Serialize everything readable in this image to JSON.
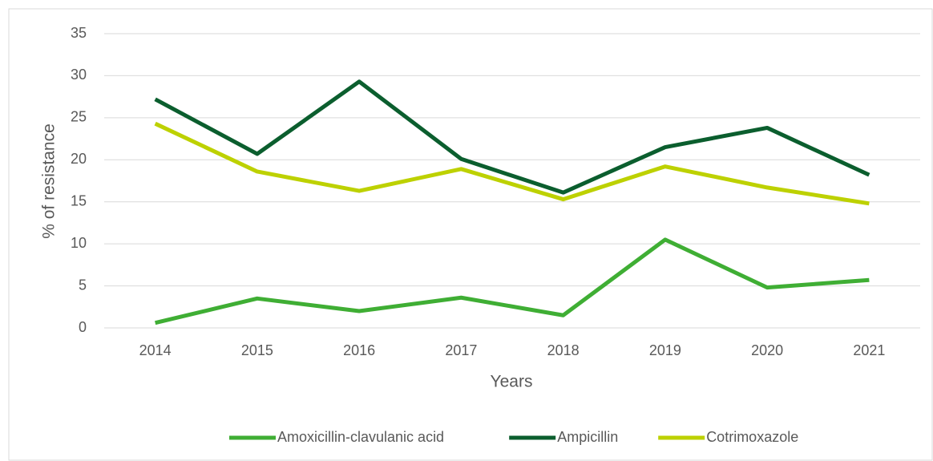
{
  "chart_data": {
    "type": "line",
    "xlabel": "Years",
    "ylabel": "% of resistance",
    "categories": [
      "2014",
      "2015",
      "2016",
      "2017",
      "2018",
      "2019",
      "2020",
      "2021"
    ],
    "series": [
      {
        "name": "Amoxicillin-clavulanic acid",
        "color": "#3fae34",
        "values": [
          0.6,
          3.5,
          2.0,
          3.6,
          1.5,
          10.5,
          4.8,
          5.7
        ]
      },
      {
        "name": "Ampicillin",
        "color": "#0b5e2e",
        "values": [
          27.2,
          20.7,
          29.3,
          20.1,
          16.1,
          21.5,
          23.8,
          18.2
        ]
      },
      {
        "name": "Cotrimoxazole",
        "color": "#bdd100",
        "values": [
          24.3,
          18.6,
          16.3,
          18.9,
          15.3,
          19.2,
          16.7,
          14.8
        ]
      }
    ],
    "ylim": [
      0,
      35
    ],
    "yticks": [
      0,
      5,
      10,
      15,
      20,
      25,
      30,
      35
    ],
    "grid": true,
    "legend": "bottom"
  }
}
